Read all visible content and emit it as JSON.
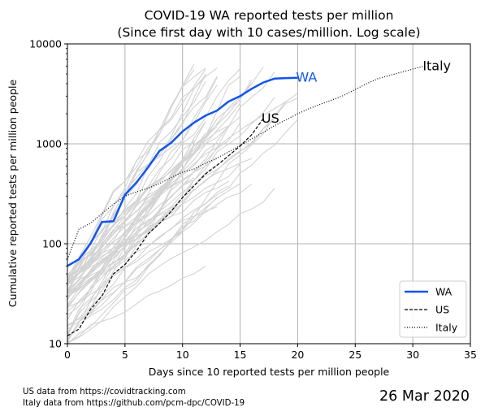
{
  "chart_data": {
    "type": "line",
    "title_line1": "COVID-19 WA reported tests per million",
    "title_line2": "(Since first day with 10 cases/million. Log scale)",
    "xlabel": "Days since 10 reported tests per million people",
    "ylabel": "Cumulative reported tests per million people",
    "xlim": [
      0,
      35
    ],
    "ylim": [
      10,
      10000
    ],
    "yscale": "log",
    "x_ticks": [
      "0",
      "5",
      "10",
      "15",
      "20",
      "25",
      "30",
      "35"
    ],
    "y_ticks": [
      "10",
      "100",
      "1000",
      "10000"
    ],
    "grid": true,
    "legend_position": "lower right",
    "series": [
      {
        "name": "WA",
        "color": "#1155ee",
        "style": "solid",
        "x": [
          0,
          1,
          2,
          3,
          4,
          5,
          6,
          7,
          8,
          9,
          10,
          11,
          12,
          13,
          14,
          15,
          16,
          17,
          18,
          19,
          20
        ],
        "y": [
          60,
          70,
          100,
          165,
          168,
          310,
          410,
          580,
          850,
          1020,
          1330,
          1630,
          1920,
          2150,
          2650,
          3000,
          3550,
          4100,
          4500,
          4550,
          4580
        ]
      },
      {
        "name": "US",
        "color": "#000000",
        "style": "dashed",
        "x": [
          0,
          1,
          2,
          3,
          4,
          5,
          6,
          7,
          8,
          9,
          10,
          11,
          12,
          13,
          14,
          15,
          16,
          17
        ],
        "y": [
          12,
          14,
          22,
          30,
          50,
          62,
          85,
          125,
          160,
          210,
          290,
          380,
          500,
          610,
          760,
          950,
          1230,
          1780
        ]
      },
      {
        "name": "Italy",
        "color": "#000000",
        "style": "dotted",
        "x": [
          0,
          1,
          2,
          3,
          4,
          5,
          6,
          7,
          8,
          9,
          10,
          11,
          12,
          13,
          14,
          15,
          16,
          17,
          18,
          19,
          20,
          21,
          22,
          23,
          24,
          25,
          26,
          27,
          28,
          29,
          30,
          31
        ],
        "y": [
          70,
          140,
          160,
          200,
          250,
          300,
          330,
          360,
          400,
          460,
          520,
          560,
          640,
          720,
          830,
          960,
          1120,
          1300,
          1520,
          1740,
          2000,
          2250,
          2500,
          2750,
          3050,
          3500,
          4000,
          4500,
          4850,
          5200,
          5600,
          6000
        ]
      }
    ],
    "line_labels": {
      "WA": "WA",
      "US": "US",
      "Italy": "Italy"
    },
    "background_series_color": "#d3d3d3"
  },
  "footnotes": {
    "line1": "US data from https://covidtracking.com",
    "line2": "Italy data from https://github.com/pcm-dpc/COVID-19"
  },
  "date": "26 Mar 2020"
}
